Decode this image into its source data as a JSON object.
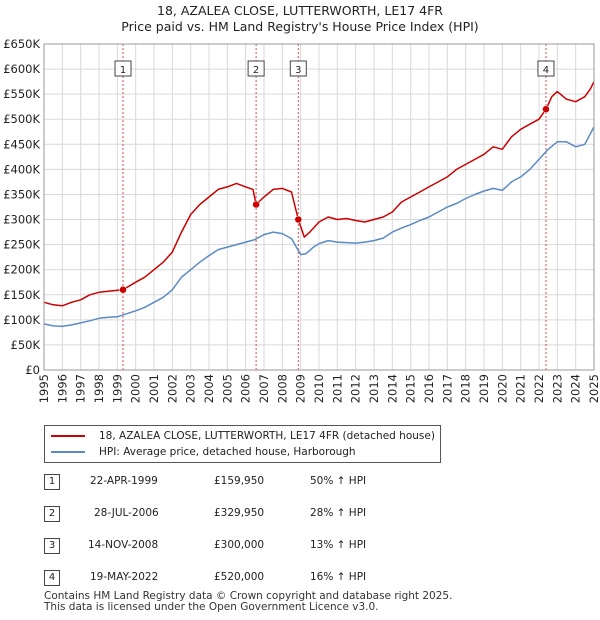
{
  "title_line1": "18, AZALEA CLOSE, LUTTERWORTH, LE17 4FR",
  "title_line2": "Price paid vs. HM Land Registry's House Price Index (HPI)",
  "colors": {
    "property": "#cc0000",
    "hpi": "#5a8ac6",
    "grid": "#d9d9d9",
    "marker_line": "#cc0000"
  },
  "chart_data": {
    "type": "line",
    "title": "Price paid vs. HM Land Registry's House Price Index (HPI)",
    "xlim": [
      1995,
      2025
    ],
    "ylim": [
      0,
      650000
    ],
    "x_ticks": [
      "1995",
      "1996",
      "1997",
      "1998",
      "1999",
      "2000",
      "2001",
      "2002",
      "2003",
      "2004",
      "2005",
      "2006",
      "2007",
      "2008",
      "2009",
      "2010",
      "2011",
      "2012",
      "2013",
      "2014",
      "2015",
      "2016",
      "2017",
      "2018",
      "2019",
      "2020",
      "2021",
      "2022",
      "2023",
      "2024",
      "2025"
    ],
    "y_ticks": [
      {
        "value": 0,
        "label": "£0"
      },
      {
        "value": 50000,
        "label": "£50K"
      },
      {
        "value": 100000,
        "label": "£100K"
      },
      {
        "value": 150000,
        "label": "£150K"
      },
      {
        "value": 200000,
        "label": "£200K"
      },
      {
        "value": 250000,
        "label": "£250K"
      },
      {
        "value": 300000,
        "label": "£300K"
      },
      {
        "value": 350000,
        "label": "£350K"
      },
      {
        "value": 400000,
        "label": "£400K"
      },
      {
        "value": 450000,
        "label": "£450K"
      },
      {
        "value": 500000,
        "label": "£500K"
      },
      {
        "value": 550000,
        "label": "£550K"
      },
      {
        "value": 600000,
        "label": "£600K"
      },
      {
        "value": 650000,
        "label": "£650K"
      }
    ],
    "series": [
      {
        "name": "18, AZALEA CLOSE, LUTTERWORTH, LE17 4FR (detached house)",
        "points": [
          [
            1995,
            135000
          ],
          [
            1995.5,
            130000
          ],
          [
            1996,
            128000
          ],
          [
            1996.5,
            135000
          ],
          [
            1997,
            140000
          ],
          [
            1997.5,
            150000
          ],
          [
            1998,
            155000
          ],
          [
            1998.5,
            157000
          ],
          [
            1999.3,
            159950
          ],
          [
            2000,
            175000
          ],
          [
            2000.5,
            185000
          ],
          [
            2001,
            200000
          ],
          [
            2001.5,
            215000
          ],
          [
            2002,
            235000
          ],
          [
            2002.5,
            275000
          ],
          [
            2003,
            310000
          ],
          [
            2003.5,
            330000
          ],
          [
            2004,
            345000
          ],
          [
            2004.5,
            360000
          ],
          [
            2005,
            365000
          ],
          [
            2005.5,
            372000
          ],
          [
            2006,
            365000
          ],
          [
            2006.4,
            360000
          ],
          [
            2006.57,
            329950
          ],
          [
            2007,
            345000
          ],
          [
            2007.5,
            360000
          ],
          [
            2008,
            362000
          ],
          [
            2008.5,
            355000
          ],
          [
            2008.87,
            300000
          ],
          [
            2009.2,
            265000
          ],
          [
            2009.5,
            275000
          ],
          [
            2010,
            295000
          ],
          [
            2010.5,
            305000
          ],
          [
            2011,
            300000
          ],
          [
            2011.5,
            302000
          ],
          [
            2012,
            298000
          ],
          [
            2012.5,
            295000
          ],
          [
            2013,
            300000
          ],
          [
            2013.5,
            305000
          ],
          [
            2014,
            315000
          ],
          [
            2014.5,
            335000
          ],
          [
            2015,
            345000
          ],
          [
            2015.5,
            355000
          ],
          [
            2016,
            365000
          ],
          [
            2016.5,
            375000
          ],
          [
            2017,
            385000
          ],
          [
            2017.5,
            400000
          ],
          [
            2018,
            410000
          ],
          [
            2018.5,
            420000
          ],
          [
            2019,
            430000
          ],
          [
            2019.5,
            445000
          ],
          [
            2020,
            440000
          ],
          [
            2020.5,
            465000
          ],
          [
            2021,
            480000
          ],
          [
            2021.5,
            490000
          ],
          [
            2022,
            500000
          ],
          [
            2022.38,
            520000
          ],
          [
            2022.7,
            545000
          ],
          [
            2023,
            555000
          ],
          [
            2023.5,
            540000
          ],
          [
            2024,
            535000
          ],
          [
            2024.5,
            545000
          ],
          [
            2024.8,
            560000
          ],
          [
            2025,
            575000
          ]
        ]
      },
      {
        "name": "HPI: Average price, detached house, Harborough",
        "points": [
          [
            1995,
            92000
          ],
          [
            1995.5,
            88000
          ],
          [
            1996,
            87000
          ],
          [
            1996.5,
            90000
          ],
          [
            1997,
            94000
          ],
          [
            1997.5,
            98000
          ],
          [
            1998,
            103000
          ],
          [
            1998.5,
            105000
          ],
          [
            1999,
            106000
          ],
          [
            1999.5,
            112000
          ],
          [
            2000,
            118000
          ],
          [
            2000.5,
            125000
          ],
          [
            2001,
            135000
          ],
          [
            2001.5,
            145000
          ],
          [
            2002,
            160000
          ],
          [
            2002.5,
            185000
          ],
          [
            2003,
            200000
          ],
          [
            2003.5,
            215000
          ],
          [
            2004,
            228000
          ],
          [
            2004.5,
            240000
          ],
          [
            2005,
            245000
          ],
          [
            2005.5,
            250000
          ],
          [
            2006,
            255000
          ],
          [
            2006.5,
            260000
          ],
          [
            2007,
            270000
          ],
          [
            2007.5,
            275000
          ],
          [
            2008,
            272000
          ],
          [
            2008.5,
            262000
          ],
          [
            2009,
            230000
          ],
          [
            2009.3,
            232000
          ],
          [
            2009.7,
            245000
          ],
          [
            2010,
            252000
          ],
          [
            2010.5,
            258000
          ],
          [
            2011,
            255000
          ],
          [
            2011.5,
            254000
          ],
          [
            2012,
            253000
          ],
          [
            2012.5,
            255000
          ],
          [
            2013,
            258000
          ],
          [
            2013.5,
            263000
          ],
          [
            2014,
            275000
          ],
          [
            2014.5,
            283000
          ],
          [
            2015,
            290000
          ],
          [
            2015.5,
            298000
          ],
          [
            2016,
            305000
          ],
          [
            2016.5,
            315000
          ],
          [
            2017,
            325000
          ],
          [
            2017.5,
            332000
          ],
          [
            2018,
            342000
          ],
          [
            2018.5,
            350000
          ],
          [
            2019,
            357000
          ],
          [
            2019.5,
            362000
          ],
          [
            2020,
            358000
          ],
          [
            2020.5,
            375000
          ],
          [
            2021,
            385000
          ],
          [
            2021.5,
            400000
          ],
          [
            2022,
            420000
          ],
          [
            2022.5,
            440000
          ],
          [
            2023,
            455000
          ],
          [
            2023.5,
            455000
          ],
          [
            2024,
            445000
          ],
          [
            2024.5,
            450000
          ],
          [
            2025,
            485000
          ]
        ]
      }
    ],
    "sales": [
      {
        "id": "1",
        "x": 1999.31,
        "price": 159950
      },
      {
        "id": "2",
        "x": 2006.57,
        "price": 329950
      },
      {
        "id": "3",
        "x": 2008.87,
        "price": 300000
      },
      {
        "id": "4",
        "x": 2022.38,
        "price": 520000
      }
    ]
  },
  "legend": {
    "property": "18, AZALEA CLOSE, LUTTERWORTH, LE17 4FR (detached house)",
    "hpi": "HPI: Average price, detached house, Harborough"
  },
  "transactions": [
    {
      "num": "1",
      "date": "22-APR-1999",
      "price": "£159,950",
      "hpi": "50% ↑ HPI"
    },
    {
      "num": "2",
      "date": "28-JUL-2006",
      "price": "£329,950",
      "hpi": "28% ↑ HPI"
    },
    {
      "num": "3",
      "date": "14-NOV-2008",
      "price": "£300,000",
      "hpi": "13% ↑ HPI"
    },
    {
      "num": "4",
      "date": "19-MAY-2022",
      "price": "£520,000",
      "hpi": "16% ↑ HPI"
    }
  ],
  "footer": {
    "line1": "Contains HM Land Registry data © Crown copyright and database right 2025.",
    "line2": "This data is licensed under the Open Government Licence v3.0."
  }
}
